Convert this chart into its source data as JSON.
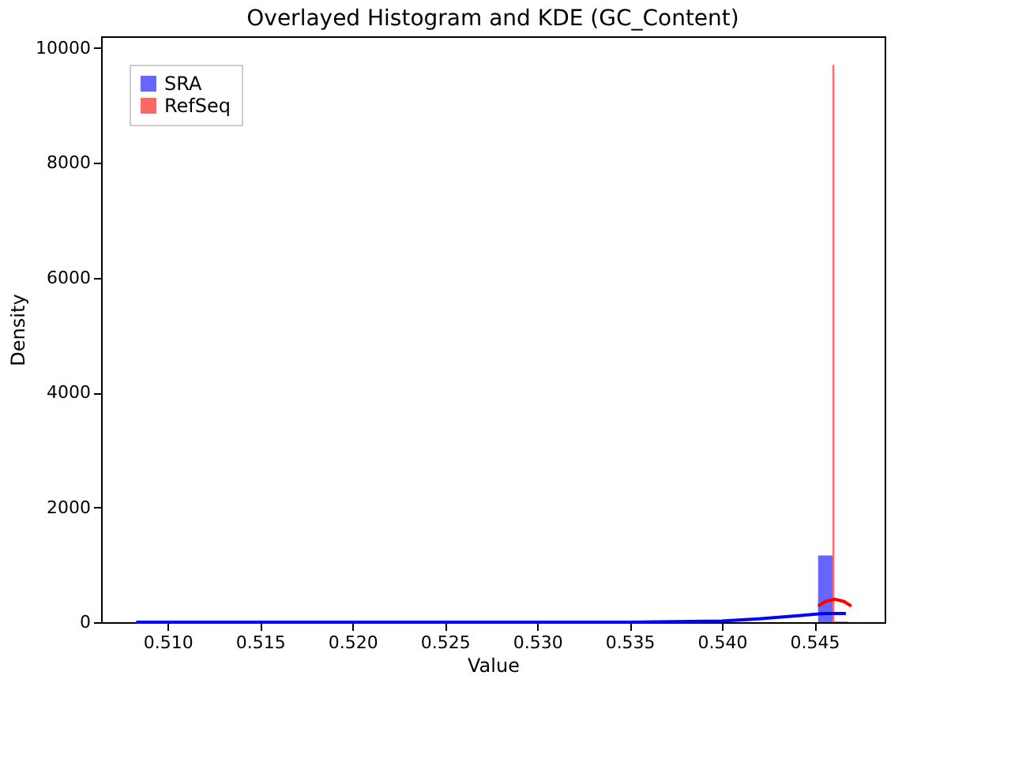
{
  "chart_data": {
    "type": "histogram",
    "title": "Overlayed Histogram and KDE (GC_Content)",
    "xlabel": "Value",
    "ylabel": "Density",
    "xlim": [
      0.5064,
      0.5488
    ],
    "xticks": [
      {
        "value": 0.51,
        "label": "0.510"
      },
      0.515,
      {
        "value": 0.52,
        "label": "0.520"
      },
      0.525,
      {
        "value": 0.53,
        "label": "0.530"
      },
      0.535,
      {
        "value": 0.54,
        "label": "0.540"
      },
      0.545
    ],
    "ylim": [
      0,
      10200
    ],
    "yticks": [
      0,
      2000,
      4000,
      6000,
      8000,
      10000
    ],
    "grid": false,
    "legend": "top left",
    "series": [
      {
        "name": "SRA",
        "color": "#6666ff",
        "bins": [
          0.5452,
          0.546,
          0.5468
        ],
        "values": [
          1160,
          10
        ]
      },
      {
        "name": "RefSeq",
        "color": "#ff6666",
        "bins": [
          0.54598,
          0.54608
        ],
        "values": [
          9700
        ]
      },
      {
        "type": "line",
        "color": "#0000ff",
        "x": [
          0.5083,
          0.515,
          0.52,
          0.525,
          0.53,
          0.535,
          0.54,
          0.542,
          0.544,
          0.5455,
          0.5467
        ],
        "values": [
          0,
          0,
          0,
          0,
          0,
          0,
          20,
          60,
          110,
          150,
          150
        ]
      },
      {
        "type": "line",
        "color": "#ff0000",
        "x": [
          0.5452,
          0.5456,
          0.5461,
          0.5466,
          0.547
        ],
        "values": [
          280,
          360,
          400,
          360,
          280
        ]
      }
    ]
  }
}
